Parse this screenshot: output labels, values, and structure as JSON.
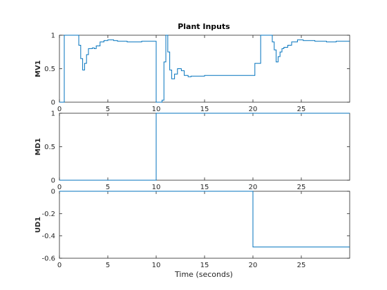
{
  "chart_data": {
    "type": "line",
    "title": "Plant Inputs",
    "xlabel": "Time (seconds)",
    "xlim": [
      0,
      30
    ],
    "xticks": [
      "0",
      "5",
      "10",
      "15",
      "20",
      "25"
    ],
    "xtick_values": [
      0,
      5,
      10,
      15,
      20,
      25
    ],
    "line_color": "#0072bd",
    "plots": [
      {
        "ylabel": "MV1",
        "ylim": [
          0,
          1
        ],
        "yticks": [
          "0",
          "0.5",
          "1"
        ],
        "ytick_values": [
          0,
          0.5,
          1
        ],
        "series": [
          {
            "x": [
              0,
              0.5,
              0.5,
              2.0,
              2.0,
              2.2,
              2.2,
              2.4,
              2.4,
              2.6,
              2.6,
              2.8,
              2.8,
              3.0,
              3.0,
              3.4,
              3.4,
              3.6,
              3.6,
              3.8,
              3.8,
              4.2,
              4.2,
              4.6,
              4.6,
              5.0,
              5.0,
              5.6,
              5.6,
              6.0,
              6.0,
              7.0,
              7.0,
              8.5,
              8.5,
              10.0,
              10.0,
              10.6,
              10.6,
              10.8,
              10.8,
              11.0,
              11.0,
              11.2,
              11.2,
              11.4,
              11.4,
              11.6,
              11.6,
              11.9,
              11.9,
              12.2,
              12.2,
              12.6,
              12.6,
              12.9,
              12.9,
              13.3,
              13.3,
              13.6,
              13.6,
              14.0,
              14.0,
              15.0,
              15.0,
              20.2,
              20.2,
              20.8,
              20.8,
              22.0,
              22.0,
              22.2,
              22.2,
              22.4,
              22.4,
              22.6,
              22.6,
              22.8,
              22.8,
              23.0,
              23.0,
              23.2,
              23.2,
              23.6,
              23.6,
              24.0,
              24.0,
              24.6,
              24.6,
              25.2,
              25.2,
              26.4,
              26.4,
              27.6,
              27.6,
              28.6,
              28.6,
              30.0
            ],
            "y": [
              0,
              0,
              1,
              1,
              0.85,
              0.85,
              0.65,
              0.65,
              0.48,
              0.48,
              0.58,
              0.58,
              0.71,
              0.71,
              0.8,
              0.8,
              0.81,
              0.81,
              0.8,
              0.8,
              0.84,
              0.84,
              0.9,
              0.9,
              0.92,
              0.92,
              0.93,
              0.93,
              0.92,
              0.92,
              0.91,
              0.91,
              0.9,
              0.9,
              0.91,
              0.91,
              0,
              0,
              0.03,
              0.03,
              0.6,
              0.6,
              1,
              1,
              0.75,
              0.75,
              0.48,
              0.48,
              0.35,
              0.35,
              0.42,
              0.42,
              0.5,
              0.5,
              0.47,
              0.47,
              0.4,
              0.4,
              0.38,
              0.38,
              0.39,
              0.39,
              0.39,
              0.39,
              0.4,
              0.4,
              0.58,
              0.58,
              1,
              1,
              0.9,
              0.9,
              0.78,
              0.78,
              0.6,
              0.6,
              0.68,
              0.68,
              0.75,
              0.75,
              0.8,
              0.8,
              0.82,
              0.82,
              0.85,
              0.85,
              0.9,
              0.9,
              0.93,
              0.93,
              0.92,
              0.92,
              0.91,
              0.91,
              0.9,
              0.9,
              0.91,
              0.91
            ]
          }
        ]
      },
      {
        "ylabel": "MD1",
        "ylim": [
          0,
          1
        ],
        "yticks": [
          "0",
          "0.5",
          "1"
        ],
        "ytick_values": [
          0,
          0.5,
          1
        ],
        "series": [
          {
            "x": [
              0,
              10,
              10,
              30
            ],
            "y": [
              0,
              0,
              1,
              1
            ]
          }
        ]
      },
      {
        "ylabel": "UD1",
        "ylim": [
          -0.6,
          0
        ],
        "yticks": [
          "0",
          "-0.2",
          "-0.4",
          "-0.6"
        ],
        "ytick_values": [
          0,
          -0.2,
          -0.4,
          -0.6
        ],
        "series": [
          {
            "x": [
              0,
              20,
              20,
              30
            ],
            "y": [
              0,
              0,
              -0.5,
              -0.5
            ]
          }
        ]
      }
    ]
  }
}
